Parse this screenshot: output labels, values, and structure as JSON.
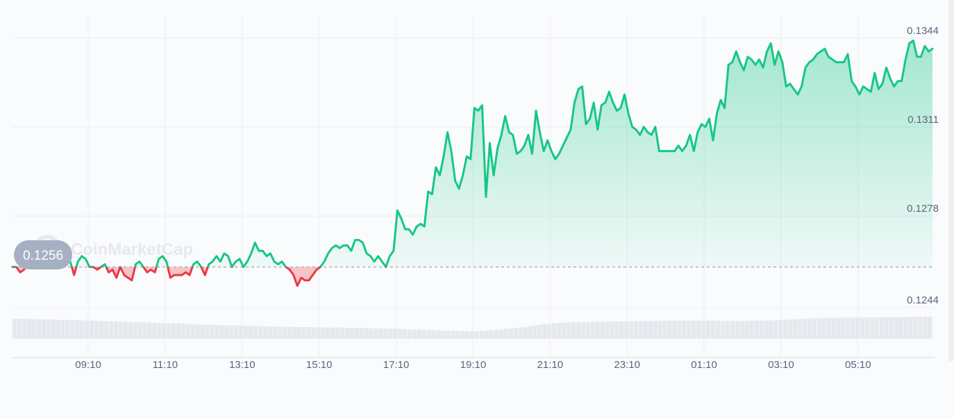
{
  "watermark": "CoinMarketCap",
  "colors": {
    "up": "#16c784",
    "down": "#ea3943",
    "grid": "#eff2f5",
    "tick": "#58667e",
    "baseline": "#a6b0c3",
    "volume": "#e6e8ee",
    "badge": "#a6b0c3"
  },
  "chart_data": {
    "type": "area",
    "baseline_value": 0.1256,
    "baseline_label": "0.1256",
    "ylim": [
      0.1236,
      0.1349
    ],
    "y_ticks": [
      {
        "value": 0.1344,
        "label": "0.1344"
      },
      {
        "value": 0.1311,
        "label": "0.1311"
      },
      {
        "value": 0.1278,
        "label": "0.1278"
      },
      {
        "value": 0.1244,
        "label": "0.1244"
      }
    ],
    "x_ticks": [
      {
        "value": 9.1667,
        "label": "09:10"
      },
      {
        "value": 11.1667,
        "label": "11:10"
      },
      {
        "value": 13.1667,
        "label": "13:10"
      },
      {
        "value": 15.1667,
        "label": "15:10"
      },
      {
        "value": 17.1667,
        "label": "17:10"
      },
      {
        "value": 19.1667,
        "label": "19:10"
      },
      {
        "value": 21.1667,
        "label": "21:10"
      },
      {
        "value": 23.1667,
        "label": "23:10"
      },
      {
        "value": 25.1667,
        "label": "01:10"
      },
      {
        "value": 27.1667,
        "label": "03:10"
      },
      {
        "value": 29.1667,
        "label": "05:10"
      }
    ],
    "xlim": [
      7.2,
      31.1
    ],
    "grid": true,
    "series": [
      {
        "values": [
          [
            7.2,
            0.1256
          ],
          [
            7.3,
            0.1256
          ],
          [
            7.4,
            0.1254
          ],
          [
            7.5,
            0.1255
          ],
          [
            7.6,
            0.1257
          ],
          [
            7.7,
            0.1256
          ],
          [
            7.8,
            0.1257
          ],
          [
            7.9,
            0.1259
          ],
          [
            8.0,
            0.1257
          ],
          [
            8.1,
            0.1258
          ],
          [
            8.2,
            0.1258
          ],
          [
            8.3,
            0.126
          ],
          [
            8.4,
            0.1258
          ],
          [
            8.5,
            0.1259
          ],
          [
            8.6,
            0.1259
          ],
          [
            8.7,
            0.1258
          ],
          [
            8.8,
            0.1253
          ],
          [
            8.9,
            0.1258
          ],
          [
            9.0,
            0.126
          ],
          [
            9.1,
            0.1259
          ],
          [
            9.2,
            0.1256
          ],
          [
            9.3,
            0.1256
          ],
          [
            9.4,
            0.1255
          ],
          [
            9.5,
            0.1256
          ],
          [
            9.6,
            0.1257
          ],
          [
            9.7,
            0.1254
          ],
          [
            9.8,
            0.1255
          ],
          [
            9.9,
            0.1252
          ],
          [
            10.0,
            0.1256
          ],
          [
            10.1,
            0.1253
          ],
          [
            10.2,
            0.1252
          ],
          [
            10.3,
            0.1251
          ],
          [
            10.4,
            0.1257
          ],
          [
            10.5,
            0.1258
          ],
          [
            10.6,
            0.1256
          ],
          [
            10.7,
            0.1254
          ],
          [
            10.8,
            0.1255
          ],
          [
            10.9,
            0.1254
          ],
          [
            11.0,
            0.1259
          ],
          [
            11.1,
            0.126
          ],
          [
            11.2,
            0.1258
          ],
          [
            11.3,
            0.1252
          ],
          [
            11.4,
            0.1253
          ],
          [
            11.5,
            0.1253
          ],
          [
            11.6,
            0.1253
          ],
          [
            11.7,
            0.1254
          ],
          [
            11.8,
            0.1253
          ],
          [
            11.9,
            0.1257
          ],
          [
            12.0,
            0.1258
          ],
          [
            12.1,
            0.1256
          ],
          [
            12.2,
            0.1253
          ],
          [
            12.3,
            0.1257
          ],
          [
            12.4,
            0.1258
          ],
          [
            12.5,
            0.126
          ],
          [
            12.6,
            0.1258
          ],
          [
            12.7,
            0.1261
          ],
          [
            12.8,
            0.126
          ],
          [
            12.9,
            0.1256
          ],
          [
            13.0,
            0.1258
          ],
          [
            13.1,
            0.1259
          ],
          [
            13.2,
            0.1256
          ],
          [
            13.3,
            0.1258
          ],
          [
            13.4,
            0.1261
          ],
          [
            13.5,
            0.1265
          ],
          [
            13.6,
            0.1262
          ],
          [
            13.7,
            0.1262
          ],
          [
            13.8,
            0.126
          ],
          [
            13.9,
            0.1261
          ],
          [
            14.0,
            0.1258
          ],
          [
            14.1,
            0.1257
          ],
          [
            14.2,
            0.1258
          ],
          [
            14.3,
            0.1256
          ],
          [
            14.4,
            0.1255
          ],
          [
            14.5,
            0.1253
          ],
          [
            14.6,
            0.1249
          ],
          [
            14.7,
            0.1252
          ],
          [
            14.8,
            0.1251
          ],
          [
            14.9,
            0.1251
          ],
          [
            15.0,
            0.1253
          ],
          [
            15.1,
            0.1255
          ],
          [
            15.2,
            0.1256
          ],
          [
            15.3,
            0.1258
          ],
          [
            15.4,
            0.1261
          ],
          [
            15.5,
            0.1263
          ],
          [
            15.6,
            0.1264
          ],
          [
            15.7,
            0.1263
          ],
          [
            15.8,
            0.1264
          ],
          [
            15.9,
            0.1264
          ],
          [
            16.0,
            0.1262
          ],
          [
            16.1,
            0.1266
          ],
          [
            16.2,
            0.1266
          ],
          [
            16.3,
            0.1265
          ],
          [
            16.4,
            0.1261
          ],
          [
            16.5,
            0.126
          ],
          [
            16.6,
            0.1258
          ],
          [
            16.7,
            0.126
          ],
          [
            16.8,
            0.1258
          ],
          [
            16.9,
            0.1256
          ],
          [
            17.0,
            0.126
          ],
          [
            17.1,
            0.1262
          ],
          [
            17.2,
            0.1277
          ],
          [
            17.3,
            0.1274
          ],
          [
            17.4,
            0.127
          ],
          [
            17.5,
            0.127
          ],
          [
            17.6,
            0.1268
          ],
          [
            17.7,
            0.1271
          ],
          [
            17.8,
            0.1272
          ],
          [
            17.9,
            0.1271
          ],
          [
            18.0,
            0.1284
          ],
          [
            18.1,
            0.1283
          ],
          [
            18.2,
            0.1293
          ],
          [
            18.3,
            0.129
          ],
          [
            18.4,
            0.1297
          ],
          [
            18.5,
            0.1306
          ],
          [
            18.6,
            0.1299
          ],
          [
            18.7,
            0.1288
          ],
          [
            18.8,
            0.1285
          ],
          [
            18.9,
            0.129
          ],
          [
            19.0,
            0.1297
          ],
          [
            19.1,
            0.1296
          ],
          [
            19.2,
            0.1315
          ],
          [
            19.3,
            0.1314
          ],
          [
            19.4,
            0.1316
          ],
          [
            19.5,
            0.1282
          ],
          [
            19.6,
            0.1302
          ],
          [
            19.7,
            0.129
          ],
          [
            19.8,
            0.13
          ],
          [
            19.9,
            0.1305
          ],
          [
            20.0,
            0.1312
          ],
          [
            20.1,
            0.1306
          ],
          [
            20.2,
            0.1305
          ],
          [
            20.3,
            0.1298
          ],
          [
            20.4,
            0.1299
          ],
          [
            20.5,
            0.1301
          ],
          [
            20.6,
            0.1305
          ],
          [
            20.7,
            0.1298
          ],
          [
            20.8,
            0.1314
          ],
          [
            20.9,
            0.1306
          ],
          [
            21.0,
            0.1299
          ],
          [
            21.1,
            0.1303
          ],
          [
            21.2,
            0.1299
          ],
          [
            21.3,
            0.1296
          ],
          [
            21.4,
            0.1298
          ],
          [
            21.5,
            0.1301
          ],
          [
            21.6,
            0.1304
          ],
          [
            21.7,
            0.1307
          ],
          [
            21.8,
            0.1317
          ],
          [
            21.9,
            0.1322
          ],
          [
            22.0,
            0.1323
          ],
          [
            22.1,
            0.1309
          ],
          [
            22.2,
            0.1311
          ],
          [
            22.3,
            0.1317
          ],
          [
            22.4,
            0.1307
          ],
          [
            22.5,
            0.1316
          ],
          [
            22.6,
            0.1317
          ],
          [
            22.7,
            0.1321
          ],
          [
            22.8,
            0.1317
          ],
          [
            22.9,
            0.1314
          ],
          [
            23.0,
            0.1315
          ],
          [
            23.1,
            0.132
          ],
          [
            23.2,
            0.1313
          ],
          [
            23.3,
            0.1308
          ],
          [
            23.4,
            0.1307
          ],
          [
            23.5,
            0.1305
          ],
          [
            23.6,
            0.1308
          ],
          [
            23.7,
            0.1306
          ],
          [
            23.8,
            0.1305
          ],
          [
            23.9,
            0.1308
          ],
          [
            24.0,
            0.1299
          ],
          [
            24.1,
            0.1299
          ],
          [
            24.2,
            0.1299
          ],
          [
            24.3,
            0.1299
          ],
          [
            24.4,
            0.1299
          ],
          [
            24.5,
            0.1301
          ],
          [
            24.6,
            0.1299
          ],
          [
            24.7,
            0.1301
          ],
          [
            24.8,
            0.1305
          ],
          [
            24.9,
            0.1299
          ],
          [
            25.0,
            0.1306
          ],
          [
            25.1,
            0.1309
          ],
          [
            25.2,
            0.1308
          ],
          [
            25.3,
            0.1311
          ],
          [
            25.4,
            0.1303
          ],
          [
            25.5,
            0.1313
          ],
          [
            25.6,
            0.1318
          ],
          [
            25.7,
            0.1315
          ],
          [
            25.8,
            0.1331
          ],
          [
            25.9,
            0.1332
          ],
          [
            26.0,
            0.1336
          ],
          [
            26.1,
            0.1332
          ],
          [
            26.2,
            0.1329
          ],
          [
            26.3,
            0.1334
          ],
          [
            26.4,
            0.1333
          ],
          [
            26.5,
            0.1331
          ],
          [
            26.6,
            0.1333
          ],
          [
            26.7,
            0.133
          ],
          [
            26.8,
            0.1336
          ],
          [
            26.9,
            0.1339
          ],
          [
            27.0,
            0.1331
          ],
          [
            27.1,
            0.1336
          ],
          [
            27.2,
            0.1332
          ],
          [
            27.3,
            0.1323
          ],
          [
            27.4,
            0.1324
          ],
          [
            27.5,
            0.1322
          ],
          [
            27.6,
            0.132
          ],
          [
            27.7,
            0.1323
          ],
          [
            27.8,
            0.133
          ],
          [
            27.9,
            0.1332
          ],
          [
            28.0,
            0.1333
          ],
          [
            28.1,
            0.1335
          ],
          [
            28.2,
            0.1336
          ],
          [
            28.3,
            0.1337
          ],
          [
            28.4,
            0.1334
          ],
          [
            28.5,
            0.1333
          ],
          [
            28.6,
            0.1332
          ],
          [
            28.7,
            0.1332
          ],
          [
            28.8,
            0.1332
          ],
          [
            28.9,
            0.1335
          ],
          [
            29.0,
            0.1325
          ],
          [
            29.1,
            0.1323
          ],
          [
            29.2,
            0.132
          ],
          [
            29.3,
            0.1323
          ],
          [
            29.4,
            0.1322
          ],
          [
            29.5,
            0.1321
          ],
          [
            29.6,
            0.1328
          ],
          [
            29.7,
            0.1322
          ],
          [
            29.8,
            0.1324
          ],
          [
            29.9,
            0.133
          ],
          [
            30.0,
            0.1326
          ],
          [
            30.1,
            0.1323
          ],
          [
            30.2,
            0.1325
          ],
          [
            30.3,
            0.1325
          ],
          [
            30.4,
            0.1333
          ],
          [
            30.5,
            0.1339
          ],
          [
            30.6,
            0.134
          ],
          [
            30.7,
            0.1334
          ],
          [
            30.8,
            0.1334
          ],
          [
            30.9,
            0.1338
          ],
          [
            31.0,
            0.1336
          ],
          [
            31.1,
            0.1337
          ]
        ]
      }
    ],
    "volume": [
      8.6,
      8.5,
      8.5,
      8.4,
      8.4,
      8.3,
      8.3,
      8.2,
      8.2,
      8.1,
      8.0,
      8.0,
      7.9,
      7.9,
      7.8,
      7.8,
      7.7,
      7.6,
      7.6,
      7.5,
      7.4,
      7.4,
      7.3,
      7.2,
      7.2,
      7.1,
      7.0,
      7.0,
      6.9,
      6.8,
      6.8,
      6.7,
      6.6,
      6.5,
      6.5,
      6.4,
      6.3,
      6.2,
      6.1,
      6.0,
      6.0,
      5.9,
      5.8,
      5.8,
      5.7,
      5.7,
      5.6,
      5.6,
      5.5,
      5.5,
      5.4,
      5.4,
      5.3,
      5.3,
      5.2,
      5.2,
      5.1,
      5.1,
      5.0,
      5.0,
      5.0,
      5.0,
      4.9,
      4.9,
      4.9,
      4.8,
      4.8,
      4.8,
      4.8,
      4.7,
      4.7,
      4.7,
      4.6,
      4.6,
      4.5,
      4.5,
      4.4,
      4.4,
      4.3,
      4.3,
      4.2,
      4.1,
      4.0,
      4.0,
      3.9,
      3.8,
      3.8,
      3.7,
      3.6,
      3.5,
      3.5,
      3.4,
      3.4,
      3.3,
      3.3,
      3.3,
      3.3,
      3.4,
      3.5,
      3.6,
      3.8,
      4.0,
      4.2,
      4.4,
      4.6,
      4.8,
      5.0,
      5.3,
      5.6,
      5.9,
      6.2,
      6.4,
      6.6,
      6.8,
      6.9,
      7.0,
      7.0,
      7.1,
      7.1,
      7.1,
      7.2,
      7.2,
      7.3,
      7.3,
      7.3,
      7.4,
      7.4,
      7.4,
      7.5,
      7.5,
      7.5,
      7.6,
      7.6,
      7.6,
      7.6,
      7.7,
      7.7,
      7.7,
      7.7,
      7.7,
      7.7,
      7.7,
      7.7,
      7.7,
      7.7,
      7.7,
      7.7,
      7.6,
      7.6,
      7.6,
      7.6,
      7.6,
      7.6,
      7.7,
      7.7,
      7.7,
      7.8,
      7.8,
      7.9,
      8.0,
      8.1,
      8.2,
      8.3,
      8.4,
      8.5,
      8.6,
      8.7,
      8.8,
      8.8,
      8.9,
      8.9,
      9.0,
      9.0,
      9.0,
      9.0,
      9.0,
      9.0,
      9.1,
      9.1,
      9.1,
      9.1,
      9.2,
      9.2,
      9.2,
      9.2,
      9.3,
      9.3,
      9.3,
      9.4,
      9.4,
      9.4
    ]
  }
}
